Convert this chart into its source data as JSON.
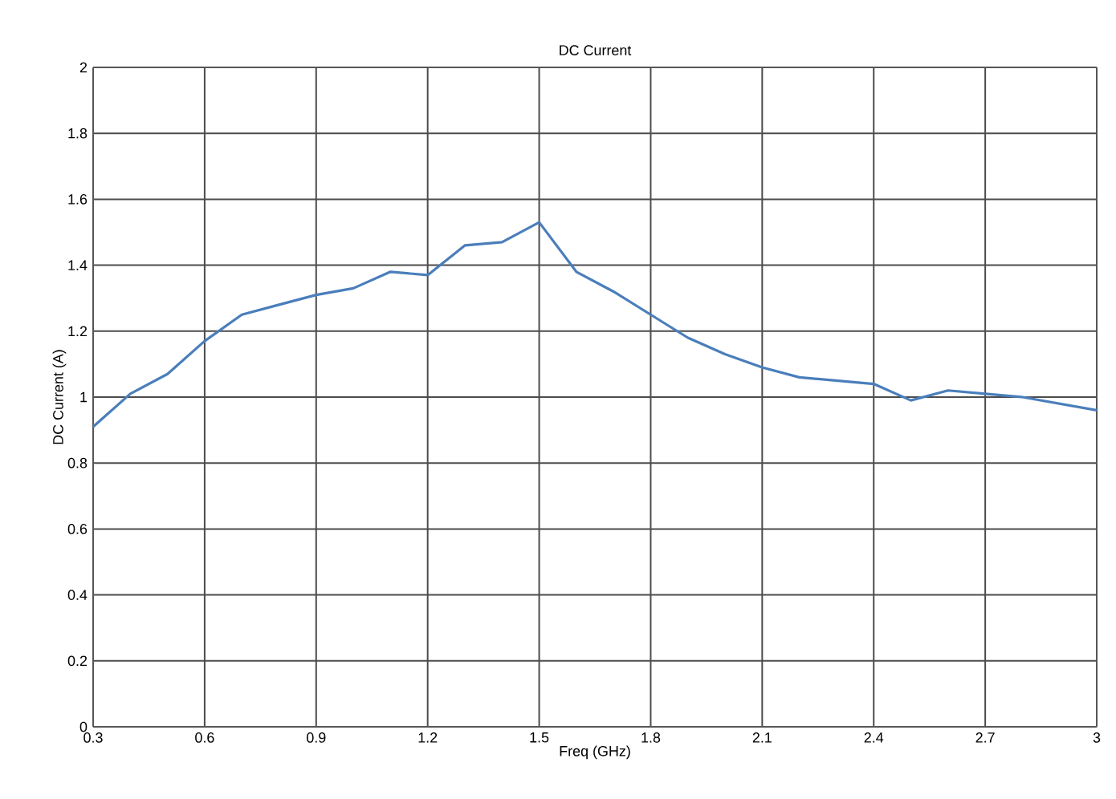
{
  "chart_data": {
    "type": "line",
    "title": "DC Current",
    "xlabel": "Freq (GHz)",
    "ylabel": "DC Current (A)",
    "x": [
      0.3,
      0.4,
      0.5,
      0.6,
      0.7,
      0.8,
      0.9,
      1.0,
      1.1,
      1.2,
      1.3,
      1.4,
      1.5,
      1.6,
      1.7,
      1.8,
      1.9,
      2.0,
      2.1,
      2.2,
      2.3,
      2.4,
      2.5,
      2.6,
      2.7,
      2.8,
      2.9,
      3.0
    ],
    "series": [
      {
        "color": "#4a7ebb",
        "values": [
          0.91,
          1.01,
          1.07,
          1.17,
          1.25,
          1.28,
          1.31,
          1.33,
          1.38,
          1.37,
          1.46,
          1.47,
          1.53,
          1.38,
          1.32,
          1.25,
          1.18,
          1.13,
          1.09,
          1.06,
          1.05,
          1.04,
          0.99,
          1.02,
          1.01,
          1.0,
          0.98,
          0.96
        ]
      }
    ],
    "xlim": [
      0.3,
      3
    ],
    "ylim": [
      0,
      2
    ],
    "xticks": [
      0.3,
      0.6,
      0.9,
      1.2,
      1.5,
      1.8,
      2.1,
      2.4,
      2.7,
      3
    ],
    "yticks": [
      0,
      0.2,
      0.4,
      0.6,
      0.8,
      1,
      1.2,
      1.4,
      1.6,
      1.8,
      2
    ],
    "grid": true,
    "marker": "none",
    "line_style": "solid"
  }
}
